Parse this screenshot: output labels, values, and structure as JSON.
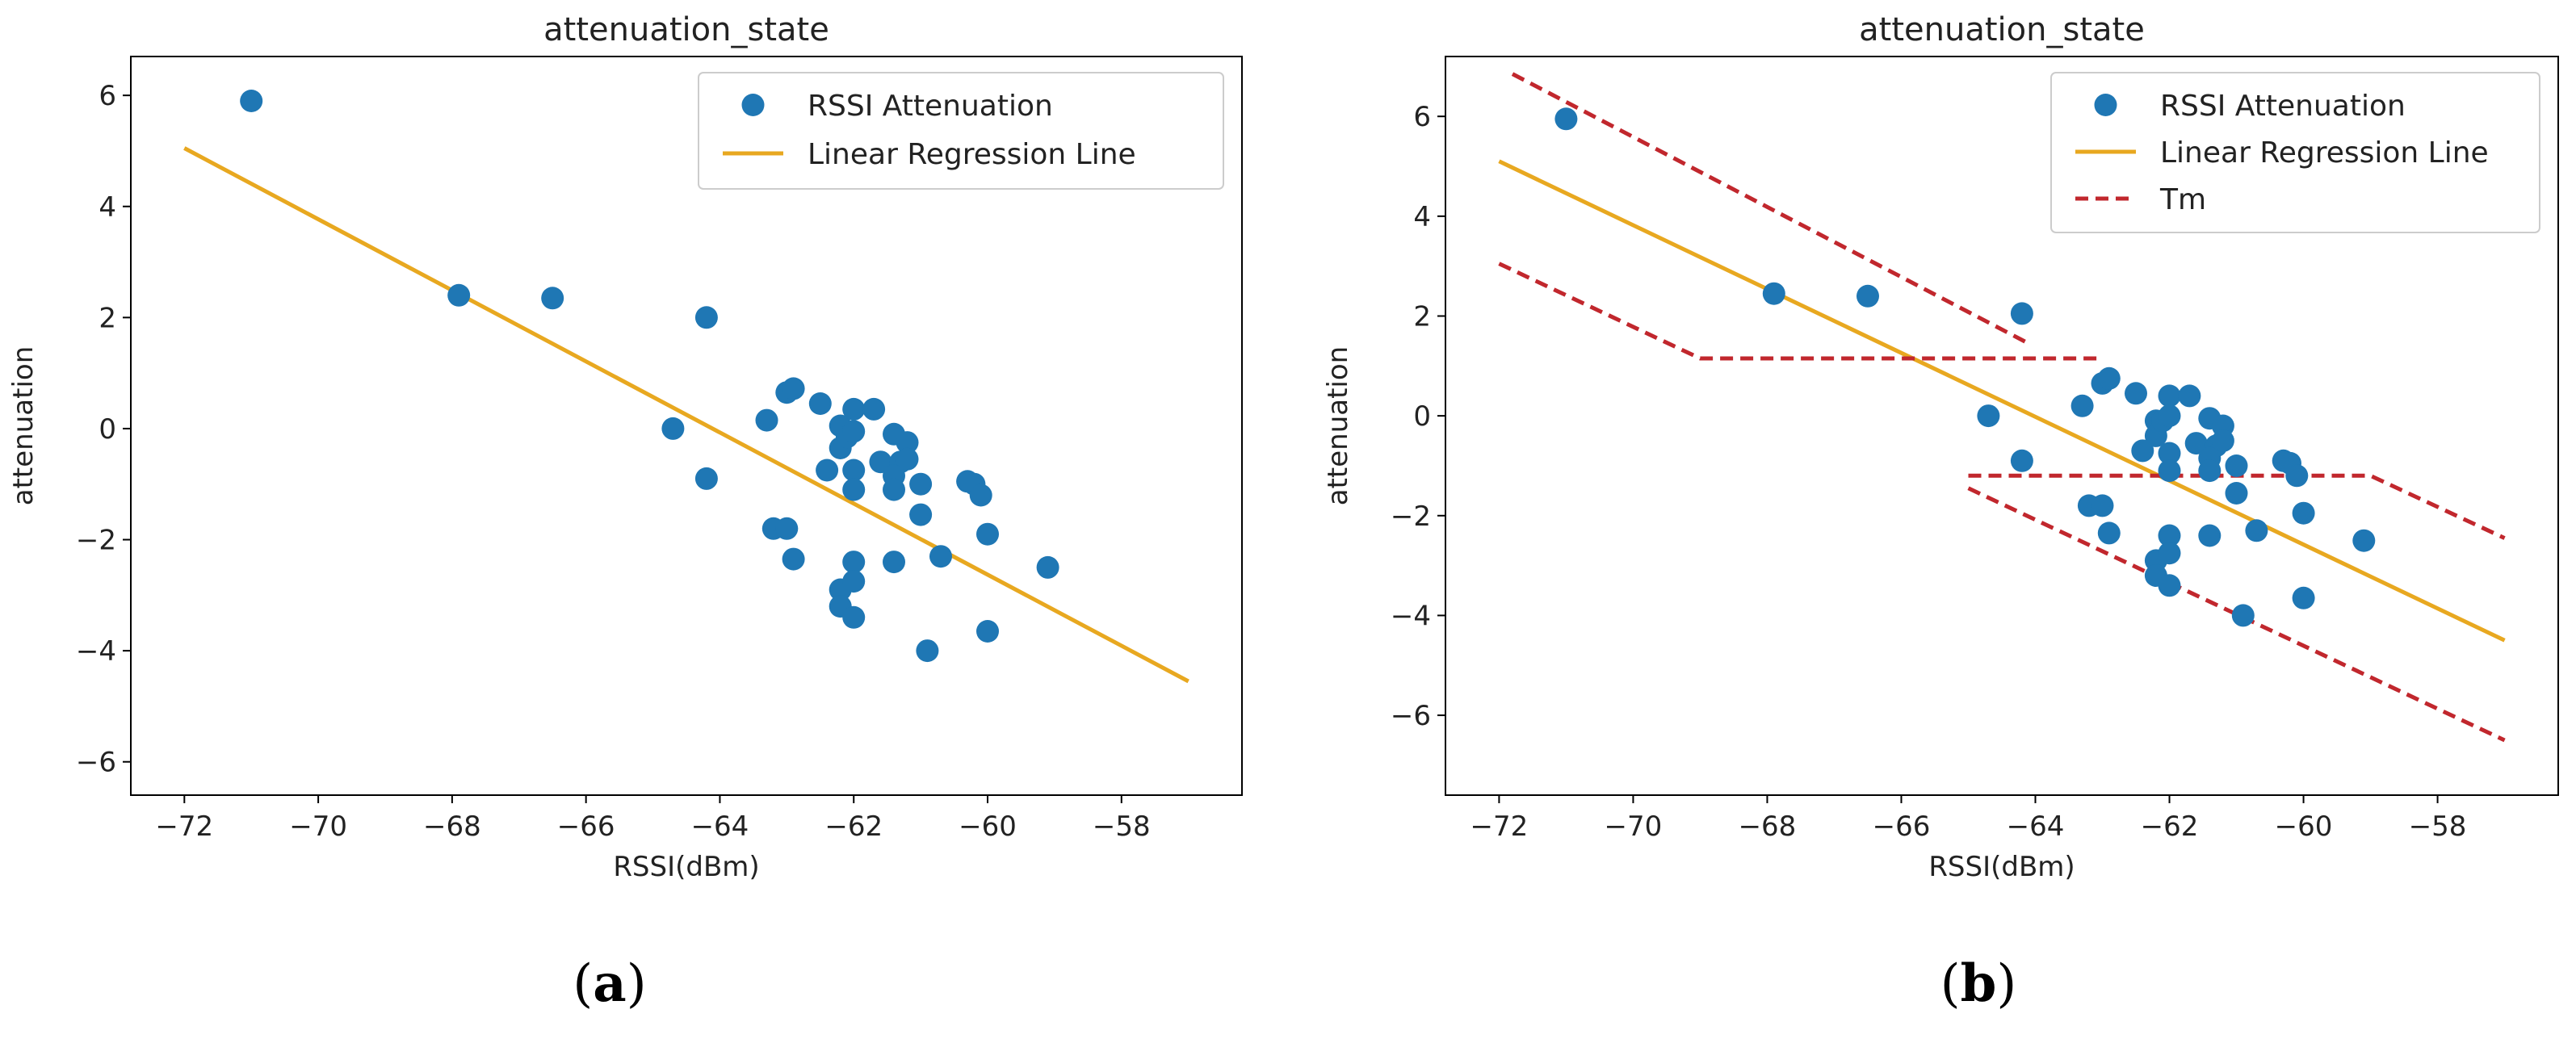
{
  "chart_data": [
    {
      "type": "scatter",
      "panel_label": "a",
      "title": "attenuation_state",
      "xlabel": "RSSI(dBm)",
      "ylabel": "attenuation",
      "xlim": [
        -72.8,
        -56.2
      ],
      "ylim": [
        -6.6,
        6.7
      ],
      "xticks": [
        -72,
        -70,
        -68,
        -66,
        -64,
        -62,
        -60,
        -58
      ],
      "xtick_labels": [
        "−72",
        "−70",
        "−68",
        "−66",
        "−64",
        "−62",
        "−60",
        "−58"
      ],
      "yticks": [
        -6,
        -4,
        -2,
        0,
        2,
        4,
        6
      ],
      "ytick_labels": [
        "−6",
        "−4",
        "−2",
        "0",
        "2",
        "4",
        "6"
      ],
      "legend_position": "top-right",
      "legend": [
        "RSSI Attenuation",
        "Linear Regression Line"
      ],
      "colors": {
        "points": "#1f77b4",
        "regression": "#e8a820",
        "threshold": "#c1272d"
      },
      "series": [
        {
          "name": "RSSI Attenuation",
          "kind": "points",
          "points": [
            [
              -71.0,
              5.9
            ],
            [
              -67.9,
              2.4
            ],
            [
              -66.5,
              2.35
            ],
            [
              -64.2,
              2.0
            ],
            [
              -64.7,
              0.0
            ],
            [
              -64.2,
              -0.9
            ],
            [
              -63.3,
              0.15
            ],
            [
              -63.0,
              0.65
            ],
            [
              -62.9,
              0.72
            ],
            [
              -62.5,
              0.45
            ],
            [
              -62.2,
              0.05
            ],
            [
              -62.0,
              0.35
            ],
            [
              -61.7,
              0.35
            ],
            [
              -61.4,
              -0.1
            ],
            [
              -61.2,
              -0.25
            ],
            [
              -62.2,
              -0.35
            ],
            [
              -62.1,
              -0.15
            ],
            [
              -62.0,
              -0.05
            ],
            [
              -61.6,
              -0.6
            ],
            [
              -61.3,
              -0.6
            ],
            [
              -61.2,
              -0.55
            ],
            [
              -62.4,
              -0.75
            ],
            [
              -62.0,
              -0.75
            ],
            [
              -61.4,
              -0.85
            ],
            [
              -61.4,
              -1.1
            ],
            [
              -62.0,
              -1.1
            ],
            [
              -61.0,
              -1.0
            ],
            [
              -60.3,
              -0.95
            ],
            [
              -60.2,
              -1.0
            ],
            [
              -60.1,
              -1.2
            ],
            [
              -63.2,
              -1.8
            ],
            [
              -63.0,
              -1.8
            ],
            [
              -61.0,
              -1.55
            ],
            [
              -60.0,
              -1.9
            ],
            [
              -62.9,
              -2.35
            ],
            [
              -62.0,
              -2.4
            ],
            [
              -61.4,
              -2.4
            ],
            [
              -60.7,
              -2.3
            ],
            [
              -59.1,
              -2.5
            ],
            [
              -62.2,
              -2.9
            ],
            [
              -62.0,
              -2.75
            ],
            [
              -62.2,
              -3.2
            ],
            [
              -62.0,
              -3.4
            ],
            [
              -60.0,
              -3.65
            ],
            [
              -60.9,
              -4.0
            ]
          ]
        },
        {
          "name": "Linear Regression Line",
          "kind": "line",
          "points": [
            [
              -72.0,
              5.05
            ],
            [
              -57.0,
              -4.55
            ]
          ]
        }
      ]
    },
    {
      "type": "scatter",
      "panel_label": "b",
      "title": "attenuation_state",
      "xlabel": "RSSI(dBm)",
      "ylabel": "attenuation",
      "xlim": [
        -72.8,
        -56.2
      ],
      "ylim": [
        -7.6,
        7.2
      ],
      "xticks": [
        -72,
        -70,
        -68,
        -66,
        -64,
        -62,
        -60,
        -58
      ],
      "xtick_labels": [
        "−72",
        "−70",
        "−68",
        "−66",
        "−64",
        "−62",
        "−60",
        "−58"
      ],
      "yticks": [
        -6,
        -4,
        -2,
        0,
        2,
        4,
        6
      ],
      "ytick_labels": [
        "−6",
        "−4",
        "−2",
        "0",
        "2",
        "4",
        "6"
      ],
      "legend_position": "top-right",
      "legend": [
        "RSSI Attenuation",
        "Linear Regression Line",
        "Tm"
      ],
      "colors": {
        "points": "#1f77b4",
        "regression": "#e8a820",
        "threshold": "#c1272d"
      },
      "series": [
        {
          "name": "RSSI Attenuation",
          "kind": "points",
          "points": [
            [
              -71.0,
              5.95
            ],
            [
              -67.9,
              2.45
            ],
            [
              -66.5,
              2.4
            ],
            [
              -64.2,
              2.05
            ],
            [
              -64.7,
              0.0
            ],
            [
              -64.2,
              -0.9
            ],
            [
              -63.3,
              0.2
            ],
            [
              -63.0,
              0.65
            ],
            [
              -62.9,
              0.75
            ],
            [
              -62.5,
              0.45
            ],
            [
              -62.2,
              -0.1
            ],
            [
              -62.0,
              0.4
            ],
            [
              -61.7,
              0.4
            ],
            [
              -61.4,
              -0.05
            ],
            [
              -61.2,
              -0.2
            ],
            [
              -62.2,
              -0.4
            ],
            [
              -62.1,
              -0.1
            ],
            [
              -62.0,
              0.0
            ],
            [
              -61.6,
              -0.55
            ],
            [
              -61.3,
              -0.6
            ],
            [
              -61.2,
              -0.5
            ],
            [
              -62.4,
              -0.7
            ],
            [
              -62.0,
              -0.75
            ],
            [
              -61.4,
              -0.85
            ],
            [
              -61.4,
              -1.1
            ],
            [
              -62.0,
              -1.1
            ],
            [
              -61.0,
              -1.0
            ],
            [
              -60.3,
              -0.9
            ],
            [
              -60.2,
              -0.95
            ],
            [
              -60.1,
              -1.2
            ],
            [
              -63.2,
              -1.8
            ],
            [
              -63.0,
              -1.8
            ],
            [
              -61.0,
              -1.55
            ],
            [
              -60.0,
              -1.95
            ],
            [
              -62.9,
              -2.35
            ],
            [
              -62.0,
              -2.4
            ],
            [
              -61.4,
              -2.4
            ],
            [
              -60.7,
              -2.3
            ],
            [
              -59.1,
              -2.5
            ],
            [
              -62.2,
              -2.9
            ],
            [
              -62.0,
              -2.75
            ],
            [
              -62.2,
              -3.2
            ],
            [
              -62.0,
              -3.4
            ],
            [
              -60.0,
              -3.65
            ],
            [
              -60.9,
              -4.0
            ]
          ]
        },
        {
          "name": "Linear Regression Line",
          "kind": "line",
          "points": [
            [
              -72.0,
              5.1
            ],
            [
              -57.0,
              -4.5
            ]
          ]
        },
        {
          "name": "Tm",
          "kind": "dashed",
          "points": [
            [
              -71.8,
              6.85
            ],
            [
              -64.1,
              1.45
            ]
          ]
        },
        {
          "name": "Tm",
          "kind": "dashed",
          "points": [
            [
              -72.0,
              3.05
            ],
            [
              -69.0,
              1.15
            ],
            [
              -63.0,
              1.15
            ]
          ]
        },
        {
          "name": "Tm",
          "kind": "dashed",
          "points": [
            [
              -65.0,
              -1.2
            ],
            [
              -59.0,
              -1.2
            ],
            [
              -57.0,
              -2.45
            ]
          ]
        },
        {
          "name": "Tm",
          "kind": "dashed",
          "points": [
            [
              -65.0,
              -1.45
            ],
            [
              -57.0,
              -6.5
            ]
          ]
        }
      ]
    }
  ]
}
